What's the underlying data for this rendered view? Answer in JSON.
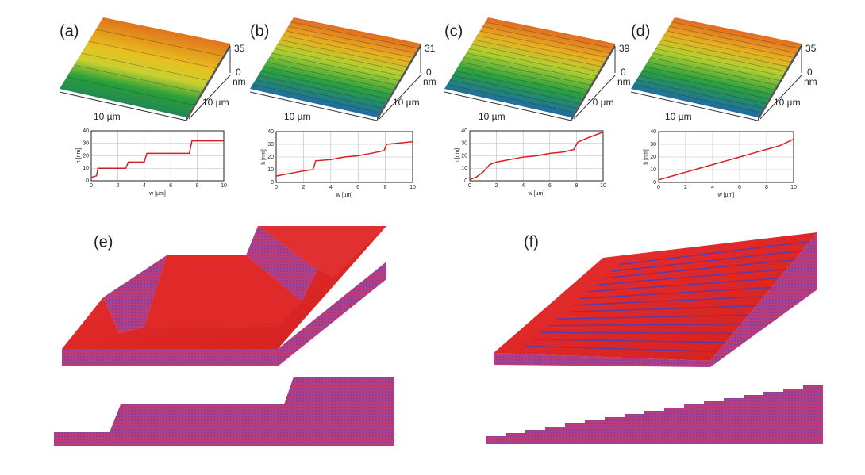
{
  "panels": [
    {
      "label": "(a)",
      "zmax": 35,
      "zmin": 0,
      "zunit": "nm",
      "xlen": "10 µm",
      "ylen": "10 µm"
    },
    {
      "label": "(b)",
      "zmax": 31,
      "zmin": 0,
      "zunit": "nm",
      "xlen": "10 µm",
      "ylen": "10 µm"
    },
    {
      "label": "(c)",
      "zmax": 39,
      "zmin": 0,
      "zunit": "nm",
      "xlen": "10 µm",
      "ylen": "10 µm"
    },
    {
      "label": "(d)",
      "zmax": 35,
      "zmin": 0,
      "zunit": "nm",
      "xlen": "10 µm",
      "ylen": "10 µm"
    }
  ],
  "models": [
    {
      "label": "(e)"
    },
    {
      "label": "(f)"
    }
  ],
  "chart_data": [
    {
      "type": "line",
      "xlabel": "w [µm]",
      "ylabel": "h [nm]",
      "color": "#d42020",
      "grid": true,
      "x": [
        0,
        0.1,
        0.4,
        0.5,
        2.6,
        2.8,
        4.0,
        4.2,
        7.4,
        7.6,
        10
      ],
      "values": [
        2,
        3,
        4,
        10,
        10,
        15,
        15,
        22,
        22,
        32,
        32
      ],
      "xlim": [
        0,
        10
      ],
      "xticks": [
        0,
        2,
        4,
        6,
        8,
        10
      ],
      "ylim": [
        0,
        40
      ],
      "yticks": [
        0,
        10,
        20,
        30,
        40
      ]
    },
    {
      "type": "line",
      "xlabel": "w [µm]",
      "ylabel": "h [nm]",
      "color": "#d42020",
      "grid": true,
      "x": [
        0,
        1,
        2,
        2.7,
        2.9,
        4,
        5,
        6,
        7,
        7.9,
        8.1,
        9,
        10
      ],
      "values": [
        5,
        7,
        9,
        10,
        17,
        18,
        20,
        21,
        23,
        25,
        30,
        31,
        32
      ],
      "xlim": [
        0,
        10
      ],
      "xticks": [
        0,
        2,
        4,
        6,
        8,
        10
      ],
      "ylim": [
        0,
        40
      ],
      "yticks": [
        0,
        10,
        20,
        30,
        40
      ]
    },
    {
      "type": "line",
      "xlabel": "w [µm]",
      "ylabel": "h [nm]",
      "color": "#d42020",
      "grid": true,
      "x": [
        0,
        0.5,
        1,
        1.5,
        2,
        3,
        4,
        5,
        6,
        7,
        7.8,
        8.1,
        9,
        10
      ],
      "values": [
        1,
        3,
        7,
        13,
        15,
        17,
        19,
        20,
        22,
        23,
        25,
        31,
        35,
        39
      ],
      "xlim": [
        0,
        10
      ],
      "xticks": [
        0,
        2,
        4,
        6,
        8,
        10
      ],
      "ylim": [
        0,
        40
      ],
      "yticks": [
        0,
        10,
        20,
        30,
        40
      ]
    },
    {
      "type": "line",
      "xlabel": "w [µm]",
      "ylabel": "h [nm]",
      "color": "#d42020",
      "grid": true,
      "x": [
        0,
        1,
        2,
        3,
        4,
        5,
        6,
        7,
        8,
        9,
        10
      ],
      "values": [
        2,
        5,
        8,
        11,
        14,
        17,
        20,
        23,
        26,
        29,
        34
      ],
      "xlim": [
        0,
        10
      ],
      "xticks": [
        0,
        2,
        4,
        6,
        8,
        10
      ],
      "ylim": [
        0,
        40
      ],
      "yticks": [
        0,
        10,
        20,
        30,
        40
      ]
    }
  ]
}
